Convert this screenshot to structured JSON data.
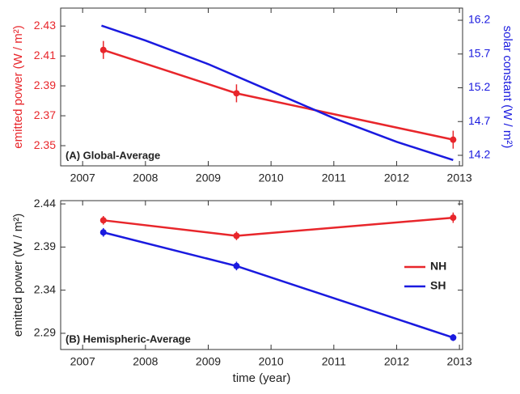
{
  "chart_data": [
    {
      "type": "line",
      "annotation": "(A) Global-Average",
      "ylabel": "emitted power (W / m²)",
      "ylabel_color": "#e8262b",
      "y2label": "solar constant (W / m²)",
      "y2label_color": "#1a1adf",
      "xlim": [
        2006.65,
        2013.05
      ],
      "xticks": [
        2007,
        2008,
        2009,
        2010,
        2011,
        2012,
        2013
      ],
      "ylim": [
        2.3365,
        2.442
      ],
      "yticks": [
        2.35,
        2.37,
        2.39,
        2.41,
        2.43
      ],
      "y2lim": [
        14.044,
        16.38
      ],
      "y2ticks": [
        14.2,
        14.7,
        15.2,
        15.7,
        16.2
      ],
      "series": [
        {
          "color": "#e8262b",
          "x": [
            2007.33,
            2009.45,
            2012.9
          ],
          "values": [
            2.414,
            2.385,
            2.354
          ],
          "errors": [
            0.006,
            0.006,
            0.006
          ]
        },
        {
          "color": "#1a1adf",
          "axis": "y2",
          "x": [
            2007.3,
            2008,
            2009,
            2010,
            2011,
            2012,
            2012.9
          ],
          "values": [
            16.12,
            15.9,
            15.55,
            15.15,
            14.75,
            14.4,
            14.13
          ]
        }
      ]
    },
    {
      "type": "line",
      "annotation": "(B) Hemispheric-Average",
      "ylabel": "emitted power (W / m²)",
      "ylabel_color": "#222222",
      "xlabel": "time (year)",
      "xlim": [
        2006.65,
        2013.05
      ],
      "xticks": [
        2007,
        2008,
        2009,
        2010,
        2011,
        2012,
        2013
      ],
      "ylim": [
        2.2712,
        2.4438
      ],
      "yticks": [
        2.29,
        2.34,
        2.39,
        2.44
      ],
      "legend": "right",
      "series": [
        {
          "name": "NH",
          "color": "#e8262b",
          "x": [
            2007.33,
            2009.45,
            2012.9
          ],
          "values": [
            2.421,
            2.403,
            2.424
          ],
          "errors": [
            0.005,
            0.005,
            0.006
          ]
        },
        {
          "name": "SH",
          "color": "#1a1adf",
          "x": [
            2007.33,
            2009.45,
            2012.9
          ],
          "values": [
            2.407,
            2.368,
            2.285
          ],
          "errors": [
            0.005,
            0.005,
            0.004
          ]
        }
      ]
    }
  ]
}
